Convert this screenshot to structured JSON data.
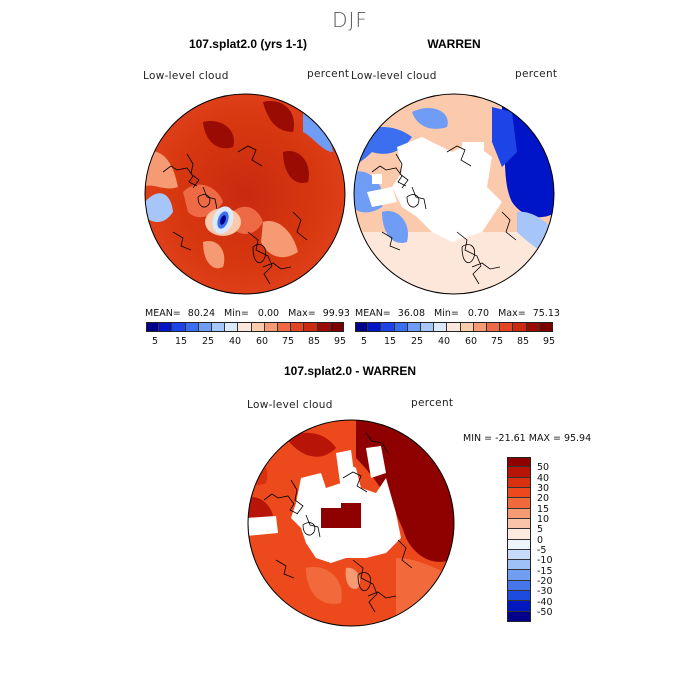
{
  "season": "DJF",
  "panels": {
    "left": {
      "title": "107.splat2.0 (yrs 1-1)",
      "variable": "Low-level cloud",
      "units": "percent",
      "stats": {
        "mean_label": "MEAN=",
        "mean": "80.24",
        "min_label": "Min=",
        "min": "0.00",
        "max_label": "Max=",
        "max": "99.93"
      }
    },
    "right": {
      "title": "WARREN",
      "variable": "Low-level cloud",
      "units": "percent",
      "stats": {
        "mean_label": "MEAN=",
        "mean": "36.08",
        "min_label": "Min=",
        "min": "0.70",
        "max_label": "Max=",
        "max": "75.13"
      }
    },
    "diff": {
      "title": "107.splat2.0 - WARREN",
      "variable": "Low-level cloud",
      "units": "percent",
      "stats_text": "MIN = -21.61 MAX = 95.94"
    }
  },
  "colorbar_abs": {
    "ticks": [
      "5",
      "15",
      "25",
      "40",
      "60",
      "75",
      "85",
      "95"
    ],
    "colors": [
      "#00008a",
      "#0015c8",
      "#1c44e6",
      "#3c6ef0",
      "#6f9cf5",
      "#a6c6fa",
      "#dbe9fd",
      "#fde7da",
      "#fbc9ab",
      "#f59a72",
      "#ee6a44",
      "#e24522",
      "#c92a10",
      "#9a0c03",
      "#7a0000"
    ]
  },
  "colorbar_diff": {
    "ticks": [
      "50",
      "40",
      "30",
      "20",
      "15",
      "10",
      "5",
      "0",
      "-5",
      "-10",
      "-15",
      "-20",
      "-30",
      "-40",
      "-50"
    ],
    "colors": [
      "#8f0000",
      "#b81508",
      "#d9300f",
      "#ec4a1c",
      "#f26a3b",
      "#f59a72",
      "#f9c4a8",
      "#fde9dd",
      "#eef4fc",
      "#c6dcfa",
      "#9ec1f6",
      "#719ef1",
      "#4676e9",
      "#1d4be0",
      "#0018c0",
      "#00008a"
    ]
  }
}
